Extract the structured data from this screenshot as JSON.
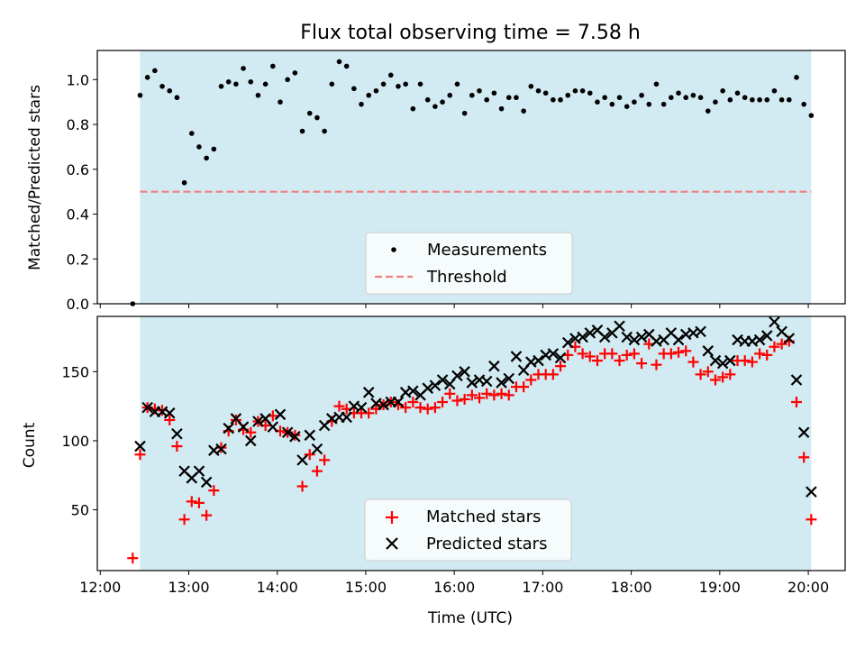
{
  "title": "Flux total observing time = 7.58 h",
  "chart_data": [
    {
      "type": "scatter",
      "ylabel": "Matched/Predicted stars",
      "xlabel": "",
      "ylim": [
        0,
        1.13
      ],
      "yticks": [
        0.0,
        0.2,
        0.4,
        0.6,
        0.8,
        1.0
      ],
      "ytick_labels": [
        "0.0",
        "0.2",
        "0.4",
        "0.6",
        "0.8",
        "1.0"
      ],
      "observing_window": [
        "12:27",
        "20:02"
      ],
      "legend_position": "bottom-center",
      "series": [
        {
          "name": "Measurements",
          "color": "#000000",
          "marker": "dot",
          "x": [
            "12:22",
            "12:27",
            "12:32",
            "12:37",
            "12:42",
            "12:47",
            "12:52",
            "12:57",
            "13:02",
            "13:07",
            "13:12",
            "13:17",
            "13:22",
            "13:27",
            "13:32",
            "13:37",
            "13:42",
            "13:47",
            "13:52",
            "13:57",
            "14:02",
            "14:07",
            "14:12",
            "14:17",
            "14:22",
            "14:27",
            "14:32",
            "14:37",
            "14:42",
            "14:47",
            "14:52",
            "14:57",
            "15:02",
            "15:07",
            "15:12",
            "15:17",
            "15:22",
            "15:27",
            "15:32",
            "15:37",
            "15:42",
            "15:47",
            "15:52",
            "15:57",
            "16:02",
            "16:07",
            "16:12",
            "16:17",
            "16:22",
            "16:27",
            "16:32",
            "16:37",
            "16:42",
            "16:47",
            "16:52",
            "16:57",
            "17:02",
            "17:07",
            "17:12",
            "17:17",
            "17:22",
            "17:27",
            "17:32",
            "17:37",
            "17:42",
            "17:47",
            "17:52",
            "17:57",
            "18:02",
            "18:07",
            "18:12",
            "18:17",
            "18:22",
            "18:27",
            "18:32",
            "18:37",
            "18:42",
            "18:47",
            "18:52",
            "18:57",
            "19:02",
            "19:07",
            "19:12",
            "19:17",
            "19:22",
            "19:27",
            "19:32",
            "19:37",
            "19:42",
            "19:47",
            "19:52",
            "19:57",
            "20:02"
          ],
          "values": [
            0.0,
            0.93,
            1.01,
            1.04,
            0.97,
            0.95,
            0.92,
            0.54,
            0.76,
            0.7,
            0.65,
            0.69,
            0.97,
            0.99,
            0.98,
            1.05,
            0.99,
            0.93,
            0.98,
            1.06,
            0.9,
            1.0,
            1.03,
            0.77,
            0.85,
            0.83,
            0.77,
            0.98,
            1.08,
            1.06,
            0.96,
            0.89,
            0.93,
            0.95,
            0.98,
            1.02,
            0.97,
            0.98,
            0.87,
            0.98,
            0.91,
            0.88,
            0.9,
            0.93,
            0.98,
            0.85,
            0.93,
            0.95,
            0.91,
            0.94,
            0.87,
            0.92,
            0.92,
            0.86,
            0.97,
            0.95,
            0.94,
            0.91,
            0.91,
            0.93,
            0.95,
            0.95,
            0.94,
            0.9,
            0.92,
            0.89,
            0.92,
            0.88,
            0.9,
            0.93,
            0.89,
            0.98,
            0.89,
            0.92,
            0.94,
            0.92,
            0.93,
            0.92,
            0.86,
            0.9,
            0.95,
            0.91,
            0.94,
            0.92,
            0.91,
            0.91,
            0.91,
            0.95,
            0.91,
            0.91,
            1.01,
            0.89,
            0.84
          ]
        },
        {
          "name": "Threshold",
          "color": "#f08080",
          "style": "dashed",
          "x": [
            "12:27",
            "20:02"
          ],
          "values": [
            0.5,
            0.5
          ]
        }
      ]
    },
    {
      "type": "scatter",
      "ylabel": "Count",
      "xlabel": "Time (UTC)",
      "xlim": [
        "11:58",
        "20:25"
      ],
      "xticks": [
        "12:00",
        "13:00",
        "14:00",
        "15:00",
        "16:00",
        "17:00",
        "18:00",
        "19:00",
        "20:00"
      ],
      "ylim": [
        6,
        190
      ],
      "yticks": [
        50,
        100,
        150
      ],
      "observing_window": [
        "12:27",
        "20:02"
      ],
      "legend_position": "bottom-center",
      "series": [
        {
          "name": "Matched stars",
          "color": "#ff0000",
          "marker": "plus",
          "x": [
            "12:22",
            "12:27",
            "12:32",
            "12:37",
            "12:42",
            "12:47",
            "12:52",
            "12:57",
            "13:02",
            "13:07",
            "13:12",
            "13:17",
            "13:22",
            "13:27",
            "13:32",
            "13:37",
            "13:42",
            "13:47",
            "13:52",
            "13:57",
            "14:02",
            "14:07",
            "14:12",
            "14:17",
            "14:22",
            "14:27",
            "14:32",
            "14:37",
            "14:42",
            "14:47",
            "14:52",
            "14:57",
            "15:02",
            "15:07",
            "15:12",
            "15:17",
            "15:22",
            "15:27",
            "15:32",
            "15:37",
            "15:42",
            "15:47",
            "15:52",
            "15:57",
            "16:02",
            "16:07",
            "16:12",
            "16:17",
            "16:22",
            "16:27",
            "16:32",
            "16:37",
            "16:42",
            "16:47",
            "16:52",
            "16:57",
            "17:02",
            "17:07",
            "17:12",
            "17:17",
            "17:22",
            "17:27",
            "17:32",
            "17:37",
            "17:42",
            "17:47",
            "17:52",
            "17:57",
            "18:02",
            "18:07",
            "18:12",
            "18:17",
            "18:22",
            "18:27",
            "18:32",
            "18:37",
            "18:42",
            "18:47",
            "18:52",
            "18:57",
            "19:02",
            "19:07",
            "19:12",
            "19:17",
            "19:22",
            "19:27",
            "19:32",
            "19:37",
            "19:42",
            "19:47",
            "19:52",
            "19:57",
            "20:02"
          ],
          "values": [
            15,
            90,
            124,
            123,
            122,
            115,
            96,
            43,
            56,
            55,
            46,
            64,
            95,
            107,
            115,
            108,
            106,
            114,
            111,
            118,
            107,
            106,
            104,
            67,
            90,
            78,
            86,
            114,
            125,
            123,
            120,
            120,
            120,
            123,
            126,
            128,
            126,
            124,
            128,
            124,
            123,
            124,
            128,
            134,
            129,
            130,
            133,
            131,
            134,
            133,
            134,
            133,
            139,
            139,
            144,
            148,
            148,
            148,
            154,
            162,
            168,
            163,
            161,
            158,
            163,
            163,
            158,
            162,
            163,
            156,
            170,
            155,
            163,
            163,
            164,
            165,
            157,
            148,
            150,
            144,
            146,
            148,
            158,
            158,
            157,
            163,
            162,
            168,
            170,
            172,
            128,
            88,
            43
          ]
        },
        {
          "name": "Predicted stars",
          "color": "#000000",
          "marker": "x",
          "x": [
            "12:27",
            "12:32",
            "12:37",
            "12:42",
            "12:47",
            "12:52",
            "12:57",
            "13:02",
            "13:07",
            "13:12",
            "13:17",
            "13:22",
            "13:27",
            "13:32",
            "13:37",
            "13:42",
            "13:47",
            "13:52",
            "13:57",
            "14:02",
            "14:07",
            "14:12",
            "14:17",
            "14:22",
            "14:27",
            "14:32",
            "14:37",
            "14:42",
            "14:47",
            "14:52",
            "14:57",
            "15:02",
            "15:07",
            "15:12",
            "15:17",
            "15:22",
            "15:27",
            "15:32",
            "15:37",
            "15:42",
            "15:47",
            "15:52",
            "15:57",
            "16:02",
            "16:07",
            "16:12",
            "16:17",
            "16:22",
            "16:27",
            "16:32",
            "16:37",
            "16:42",
            "16:47",
            "16:52",
            "16:57",
            "17:02",
            "17:07",
            "17:12",
            "17:17",
            "17:22",
            "17:27",
            "17:32",
            "17:37",
            "17:42",
            "17:47",
            "17:52",
            "17:57",
            "18:02",
            "18:07",
            "18:12",
            "18:17",
            "18:22",
            "18:27",
            "18:32",
            "18:37",
            "18:42",
            "18:47",
            "18:52",
            "18:57",
            "19:02",
            "19:07",
            "19:12",
            "19:17",
            "19:22",
            "19:27",
            "19:32",
            "19:37",
            "19:42",
            "19:47",
            "19:52",
            "19:57",
            "20:02"
          ],
          "values": [
            96,
            124,
            121,
            121,
            120,
            105,
            78,
            73,
            78,
            70,
            93,
            94,
            109,
            116,
            110,
            100,
            114,
            116,
            110,
            119,
            106,
            103,
            86,
            104,
            94,
            111,
            116,
            117,
            117,
            125,
            124,
            135,
            127,
            126,
            128,
            128,
            135,
            136,
            133,
            138,
            140,
            144,
            141,
            147,
            150,
            142,
            144,
            143,
            154,
            142,
            145,
            161,
            151,
            157,
            158,
            162,
            163,
            160,
            171,
            174,
            175,
            178,
            180,
            175,
            178,
            183,
            175,
            173,
            175,
            177,
            172,
            173,
            178,
            173,
            177,
            178,
            179,
            165,
            158,
            156,
            158,
            173,
            172,
            172,
            173,
            176,
            186,
            179,
            174,
            144,
            106,
            63
          ]
        }
      ]
    }
  ]
}
